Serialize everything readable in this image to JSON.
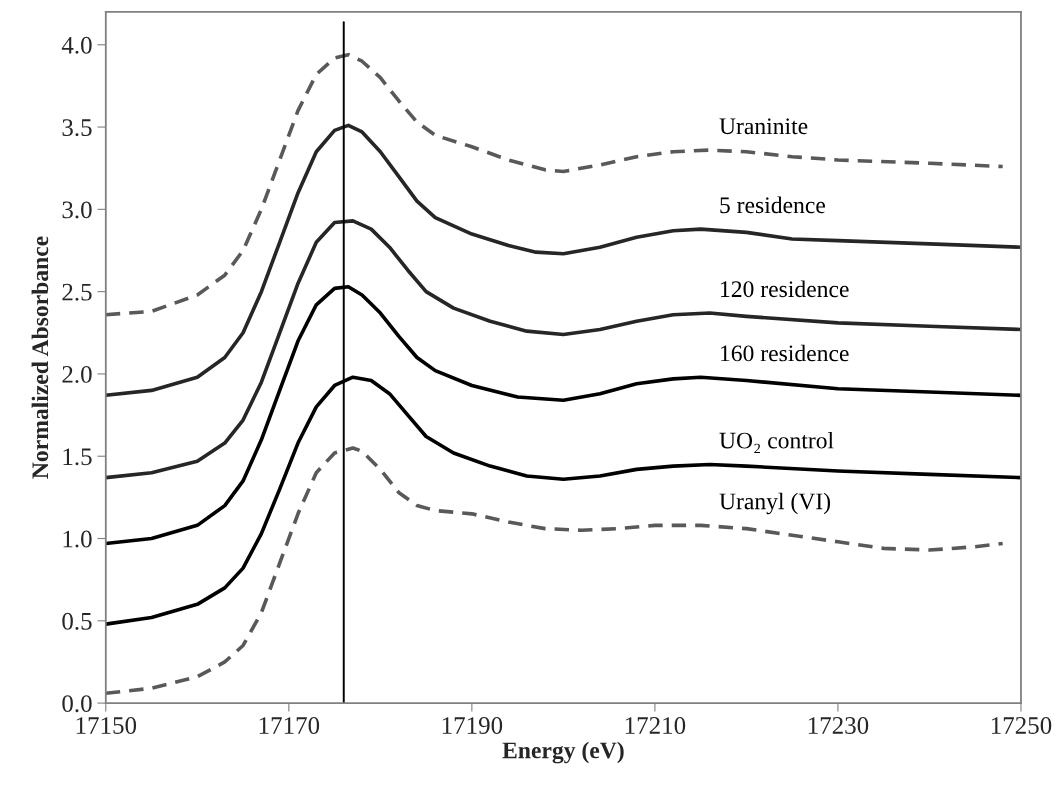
{
  "chart_data": {
    "type": "line",
    "xlabel": "Energy (eV)",
    "ylabel": "Normalized Absorbance",
    "xlim": [
      17150,
      17250
    ],
    "xticks": [
      17150,
      17170,
      17190,
      17210,
      17230,
      17250
    ],
    "ylim": [
      0,
      4.2
    ],
    "yticks": [
      {
        "value": 0,
        "label": "0.0"
      },
      {
        "value": 0.5,
        "label": "0.5"
      },
      {
        "value": 1,
        "label": "1.0"
      },
      {
        "value": 1.5,
        "label": "1.5"
      },
      {
        "value": 2,
        "label": "2.0"
      },
      {
        "value": 2.5,
        "label": "2.5"
      },
      {
        "value": 3,
        "label": "3.0"
      },
      {
        "value": 3.5,
        "label": "3.5"
      },
      {
        "value": 4,
        "label": "4.0"
      }
    ],
    "grid": false,
    "legend": false,
    "marker": "none",
    "ref_lines": [
      {
        "axis": "x",
        "value": 17176,
        "color": "#000000",
        "line_style": "solid"
      }
    ],
    "series": [
      {
        "name": "Uraninite",
        "color": "#595959",
        "line_style": "dashed",
        "x": [
          17150,
          17155,
          17160,
          17163,
          17165,
          17167,
          17169,
          17171,
          17173,
          17175,
          17176.5,
          17178,
          17180,
          17182,
          17184,
          17186,
          17190,
          17194,
          17198,
          17200,
          17204,
          17208,
          17212,
          17216,
          17220,
          17225,
          17230,
          17240,
          17248
        ],
        "values": [
          2.36,
          2.38,
          2.48,
          2.6,
          2.75,
          3.0,
          3.3,
          3.6,
          3.82,
          3.92,
          3.94,
          3.9,
          3.8,
          3.66,
          3.53,
          3.45,
          3.38,
          3.3,
          3.24,
          3.23,
          3.27,
          3.32,
          3.35,
          3.36,
          3.35,
          3.32,
          3.3,
          3.28,
          3.26
        ]
      },
      {
        "name": "5 residence",
        "color": "#262626",
        "line_style": "solid",
        "x": [
          17150,
          17155,
          17160,
          17163,
          17165,
          17167,
          17169,
          17171,
          17173,
          17175,
          17176.5,
          17178,
          17180,
          17182,
          17184,
          17186,
          17190,
          17194,
          17197,
          17200,
          17204,
          17208,
          17212,
          17215,
          17220,
          17225,
          17230,
          17240,
          17250
        ],
        "values": [
          1.87,
          1.9,
          1.98,
          2.1,
          2.25,
          2.5,
          2.8,
          3.1,
          3.35,
          3.48,
          3.51,
          3.47,
          3.35,
          3.2,
          3.05,
          2.95,
          2.85,
          2.78,
          2.74,
          2.73,
          2.77,
          2.83,
          2.87,
          2.88,
          2.86,
          2.82,
          2.81,
          2.79,
          2.77
        ]
      },
      {
        "name": "120 residence",
        "color": "#262626",
        "line_style": "solid",
        "x": [
          17150,
          17155,
          17160,
          17163,
          17165,
          17167,
          17169,
          17171,
          17173,
          17175,
          17177,
          17179,
          17181,
          17183,
          17185,
          17188,
          17192,
          17196,
          17200,
          17204,
          17208,
          17212,
          17216,
          17220,
          17230,
          17240,
          17250
        ],
        "values": [
          1.37,
          1.4,
          1.47,
          1.58,
          1.72,
          1.95,
          2.25,
          2.55,
          2.8,
          2.92,
          2.93,
          2.88,
          2.77,
          2.63,
          2.5,
          2.4,
          2.32,
          2.26,
          2.24,
          2.27,
          2.32,
          2.36,
          2.37,
          2.35,
          2.31,
          2.29,
          2.27
        ]
      },
      {
        "name": "160 residence",
        "color": "#000000",
        "line_style": "solid",
        "x": [
          17150,
          17155,
          17160,
          17163,
          17165,
          17167,
          17169,
          17171,
          17173,
          17175,
          17176.5,
          17178,
          17180,
          17182,
          17184,
          17186,
          17190,
          17195,
          17200,
          17204,
          17208,
          17212,
          17215,
          17220,
          17230,
          17240,
          17250
        ],
        "values": [
          0.97,
          1.0,
          1.08,
          1.2,
          1.35,
          1.6,
          1.9,
          2.2,
          2.42,
          2.52,
          2.53,
          2.48,
          2.37,
          2.23,
          2.1,
          2.02,
          1.93,
          1.86,
          1.84,
          1.88,
          1.94,
          1.97,
          1.98,
          1.96,
          1.91,
          1.89,
          1.87
        ]
      },
      {
        "name": "UO₂ control",
        "color": "#000000",
        "line_style": "solid",
        "x": [
          17150,
          17155,
          17160,
          17163,
          17165,
          17167,
          17169,
          17171,
          17173,
          17175,
          17177,
          17179,
          17181,
          17183,
          17185,
          17188,
          17192,
          17196,
          17200,
          17204,
          17208,
          17212,
          17216,
          17220,
          17230,
          17240,
          17250
        ],
        "values": [
          0.48,
          0.52,
          0.6,
          0.7,
          0.82,
          1.03,
          1.3,
          1.58,
          1.8,
          1.93,
          1.98,
          1.96,
          1.88,
          1.75,
          1.62,
          1.52,
          1.44,
          1.38,
          1.36,
          1.38,
          1.42,
          1.44,
          1.45,
          1.44,
          1.41,
          1.39,
          1.37
        ]
      },
      {
        "name": "Uranyl (VI)",
        "color": "#595959",
        "line_style": "dashed",
        "x": [
          17150,
          17155,
          17160,
          17163,
          17165,
          17167,
          17169,
          17171,
          17173,
          17175,
          17177,
          17178,
          17180,
          17182,
          17184,
          17186,
          17190,
          17194,
          17198,
          17202,
          17206,
          17210,
          17215,
          17220,
          17225,
          17230,
          17235,
          17240,
          17245,
          17248
        ],
        "values": [
          0.06,
          0.09,
          0.16,
          0.25,
          0.35,
          0.55,
          0.85,
          1.15,
          1.4,
          1.52,
          1.55,
          1.53,
          1.42,
          1.28,
          1.2,
          1.17,
          1.15,
          1.1,
          1.06,
          1.05,
          1.06,
          1.08,
          1.08,
          1.06,
          1.02,
          0.98,
          0.94,
          0.93,
          0.95,
          0.97
        ]
      }
    ]
  }
}
